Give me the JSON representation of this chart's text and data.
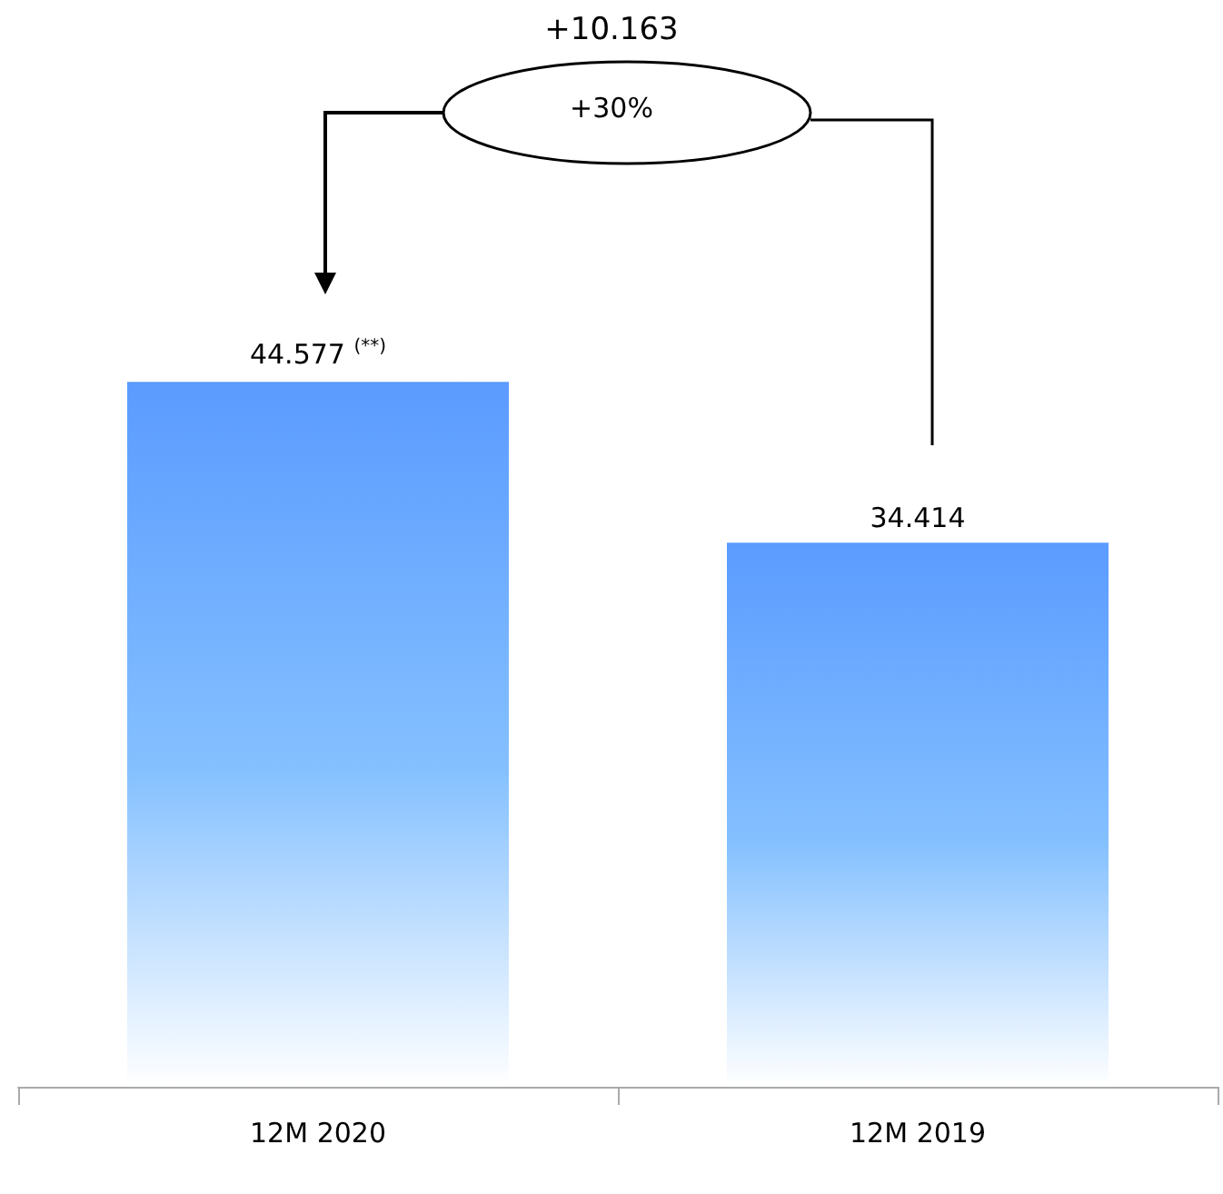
{
  "chart_data": {
    "type": "bar",
    "categories": [
      "12M 2020",
      "12M 2019"
    ],
    "values": [
      44.577,
      34.414
    ],
    "color": "#5b9bff",
    "value_labels": [
      "44.577 $^{(**)}$",
      "34.414"
    ],
    "annotations": [
      "+10.163",
      "+30%"
    ]
  }
}
